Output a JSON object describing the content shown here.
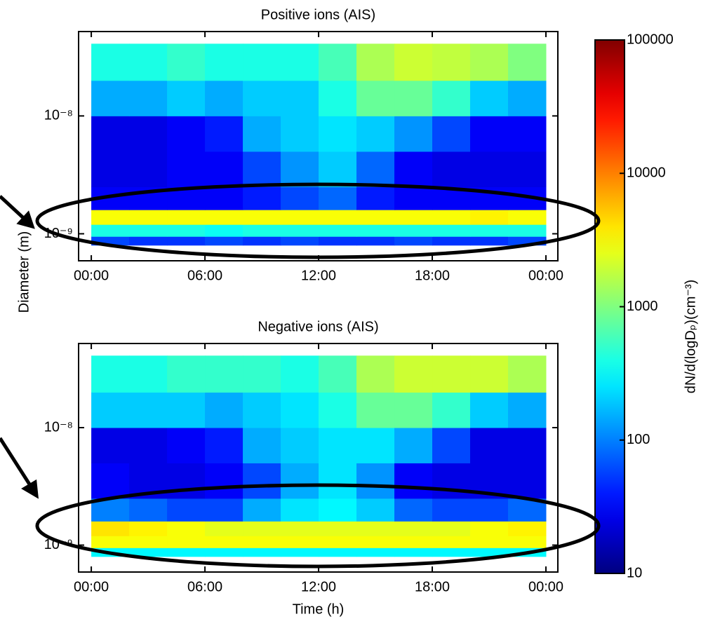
{
  "chart_data": [
    {
      "type": "heatmap",
      "title": "Positive ions (AIS)",
      "ylabel": "Diameter (m)",
      "xlim": [
        -0.67,
        24.63
      ],
      "ylim": [
        5.9e-10,
        5.2e-08
      ],
      "log_y": true,
      "xticks": [
        {
          "value": 0,
          "label": "00:00"
        },
        {
          "value": 6,
          "label": "06:00"
        },
        {
          "value": 12,
          "label": "12:00"
        },
        {
          "value": 18,
          "label": "18:00"
        },
        {
          "value": 24,
          "label": "00:00"
        }
      ],
      "yticks": [
        {
          "value": 1e-09,
          "label": "10⁻⁹"
        },
        {
          "value": 1e-08,
          "label": "10⁻⁸"
        }
      ],
      "x_bins": [
        0,
        2,
        4,
        6,
        8,
        10,
        12,
        14,
        16,
        18,
        20,
        22,
        24
      ],
      "y_bins": [
        8e-10,
        9.5e-10,
        1.2e-09,
        1.6e-09,
        2.5e-09,
        5e-09,
        1e-08,
        2e-08,
        4.1e-08
      ],
      "values": [
        [
          60,
          50,
          50,
          60,
          50,
          60,
          50,
          50,
          60,
          50,
          50,
          60
        ],
        [
          400,
          400,
          400,
          350,
          400,
          400,
          400,
          400,
          400,
          400,
          400,
          400
        ],
        [
          3000,
          3000,
          3000,
          3000,
          3000,
          3000,
          3000,
          3000,
          3000,
          3000,
          3500,
          3000
        ],
        [
          30,
          30,
          30,
          30,
          40,
          60,
          80,
          40,
          30,
          30,
          30,
          30
        ],
        [
          25,
          25,
          30,
          30,
          60,
          120,
          200,
          80,
          30,
          25,
          25,
          25
        ],
        [
          25,
          25,
          30,
          40,
          150,
          200,
          250,
          200,
          120,
          60,
          30,
          30
        ],
        [
          150,
          150,
          200,
          150,
          200,
          200,
          400,
          800,
          800,
          500,
          200,
          150
        ],
        [
          400,
          400,
          500,
          400,
          400,
          400,
          600,
          1500,
          2000,
          1800,
          1500,
          1000
        ]
      ],
      "colorbar": {
        "label": "dN/d(logDₚ)(cm⁻³)",
        "lim": [
          10,
          100000
        ],
        "ticks": [
          10,
          100,
          1000,
          10000,
          100000
        ],
        "log": true,
        "colormap": "jet"
      }
    },
    {
      "type": "heatmap",
      "title": "Negative ions (AIS)",
      "xlabel": "Time (h)",
      "xlim": [
        -0.67,
        24.63
      ],
      "ylim": [
        5.9e-10,
        5.2e-08
      ],
      "log_y": true,
      "xticks": [
        {
          "value": 0,
          "label": "00:00"
        },
        {
          "value": 6,
          "label": "06:00"
        },
        {
          "value": 12,
          "label": "12:00"
        },
        {
          "value": 18,
          "label": "18:00"
        },
        {
          "value": 24,
          "label": "00:00"
        }
      ],
      "yticks": [
        {
          "value": 1e-09,
          "label": "10⁻⁹"
        },
        {
          "value": 1e-08,
          "label": "10⁻⁸"
        }
      ],
      "x_bins": [
        0,
        2,
        4,
        6,
        8,
        10,
        12,
        14,
        16,
        18,
        20,
        22,
        24
      ],
      "y_bins": [
        8e-10,
        9.5e-10,
        1.2e-09,
        1.6e-09,
        2.5e-09,
        5e-09,
        1e-08,
        2e-08,
        4.1e-08
      ],
      "values": [
        [
          300,
          300,
          300,
          300,
          300,
          300,
          300,
          300,
          300,
          300,
          300,
          300
        ],
        [
          3000,
          3000,
          3000,
          3000,
          3000,
          3000,
          3000,
          3000,
          3000,
          3000,
          3000,
          3000
        ],
        [
          4000,
          3500,
          3000,
          2500,
          2500,
          2500,
          2500,
          2500,
          2500,
          2500,
          3000,
          3500
        ],
        [
          100,
          80,
          60,
          60,
          150,
          250,
          300,
          200,
          80,
          60,
          60,
          80
        ],
        [
          30,
          25,
          25,
          30,
          60,
          150,
          250,
          120,
          30,
          25,
          25,
          25
        ],
        [
          25,
          25,
          30,
          40,
          150,
          200,
          250,
          250,
          150,
          60,
          25,
          25
        ],
        [
          200,
          200,
          200,
          150,
          200,
          250,
          400,
          800,
          800,
          500,
          200,
          150
        ],
        [
          400,
          400,
          500,
          500,
          500,
          400,
          600,
          1500,
          2000,
          2000,
          2000,
          1500
        ]
      ]
    }
  ]
}
